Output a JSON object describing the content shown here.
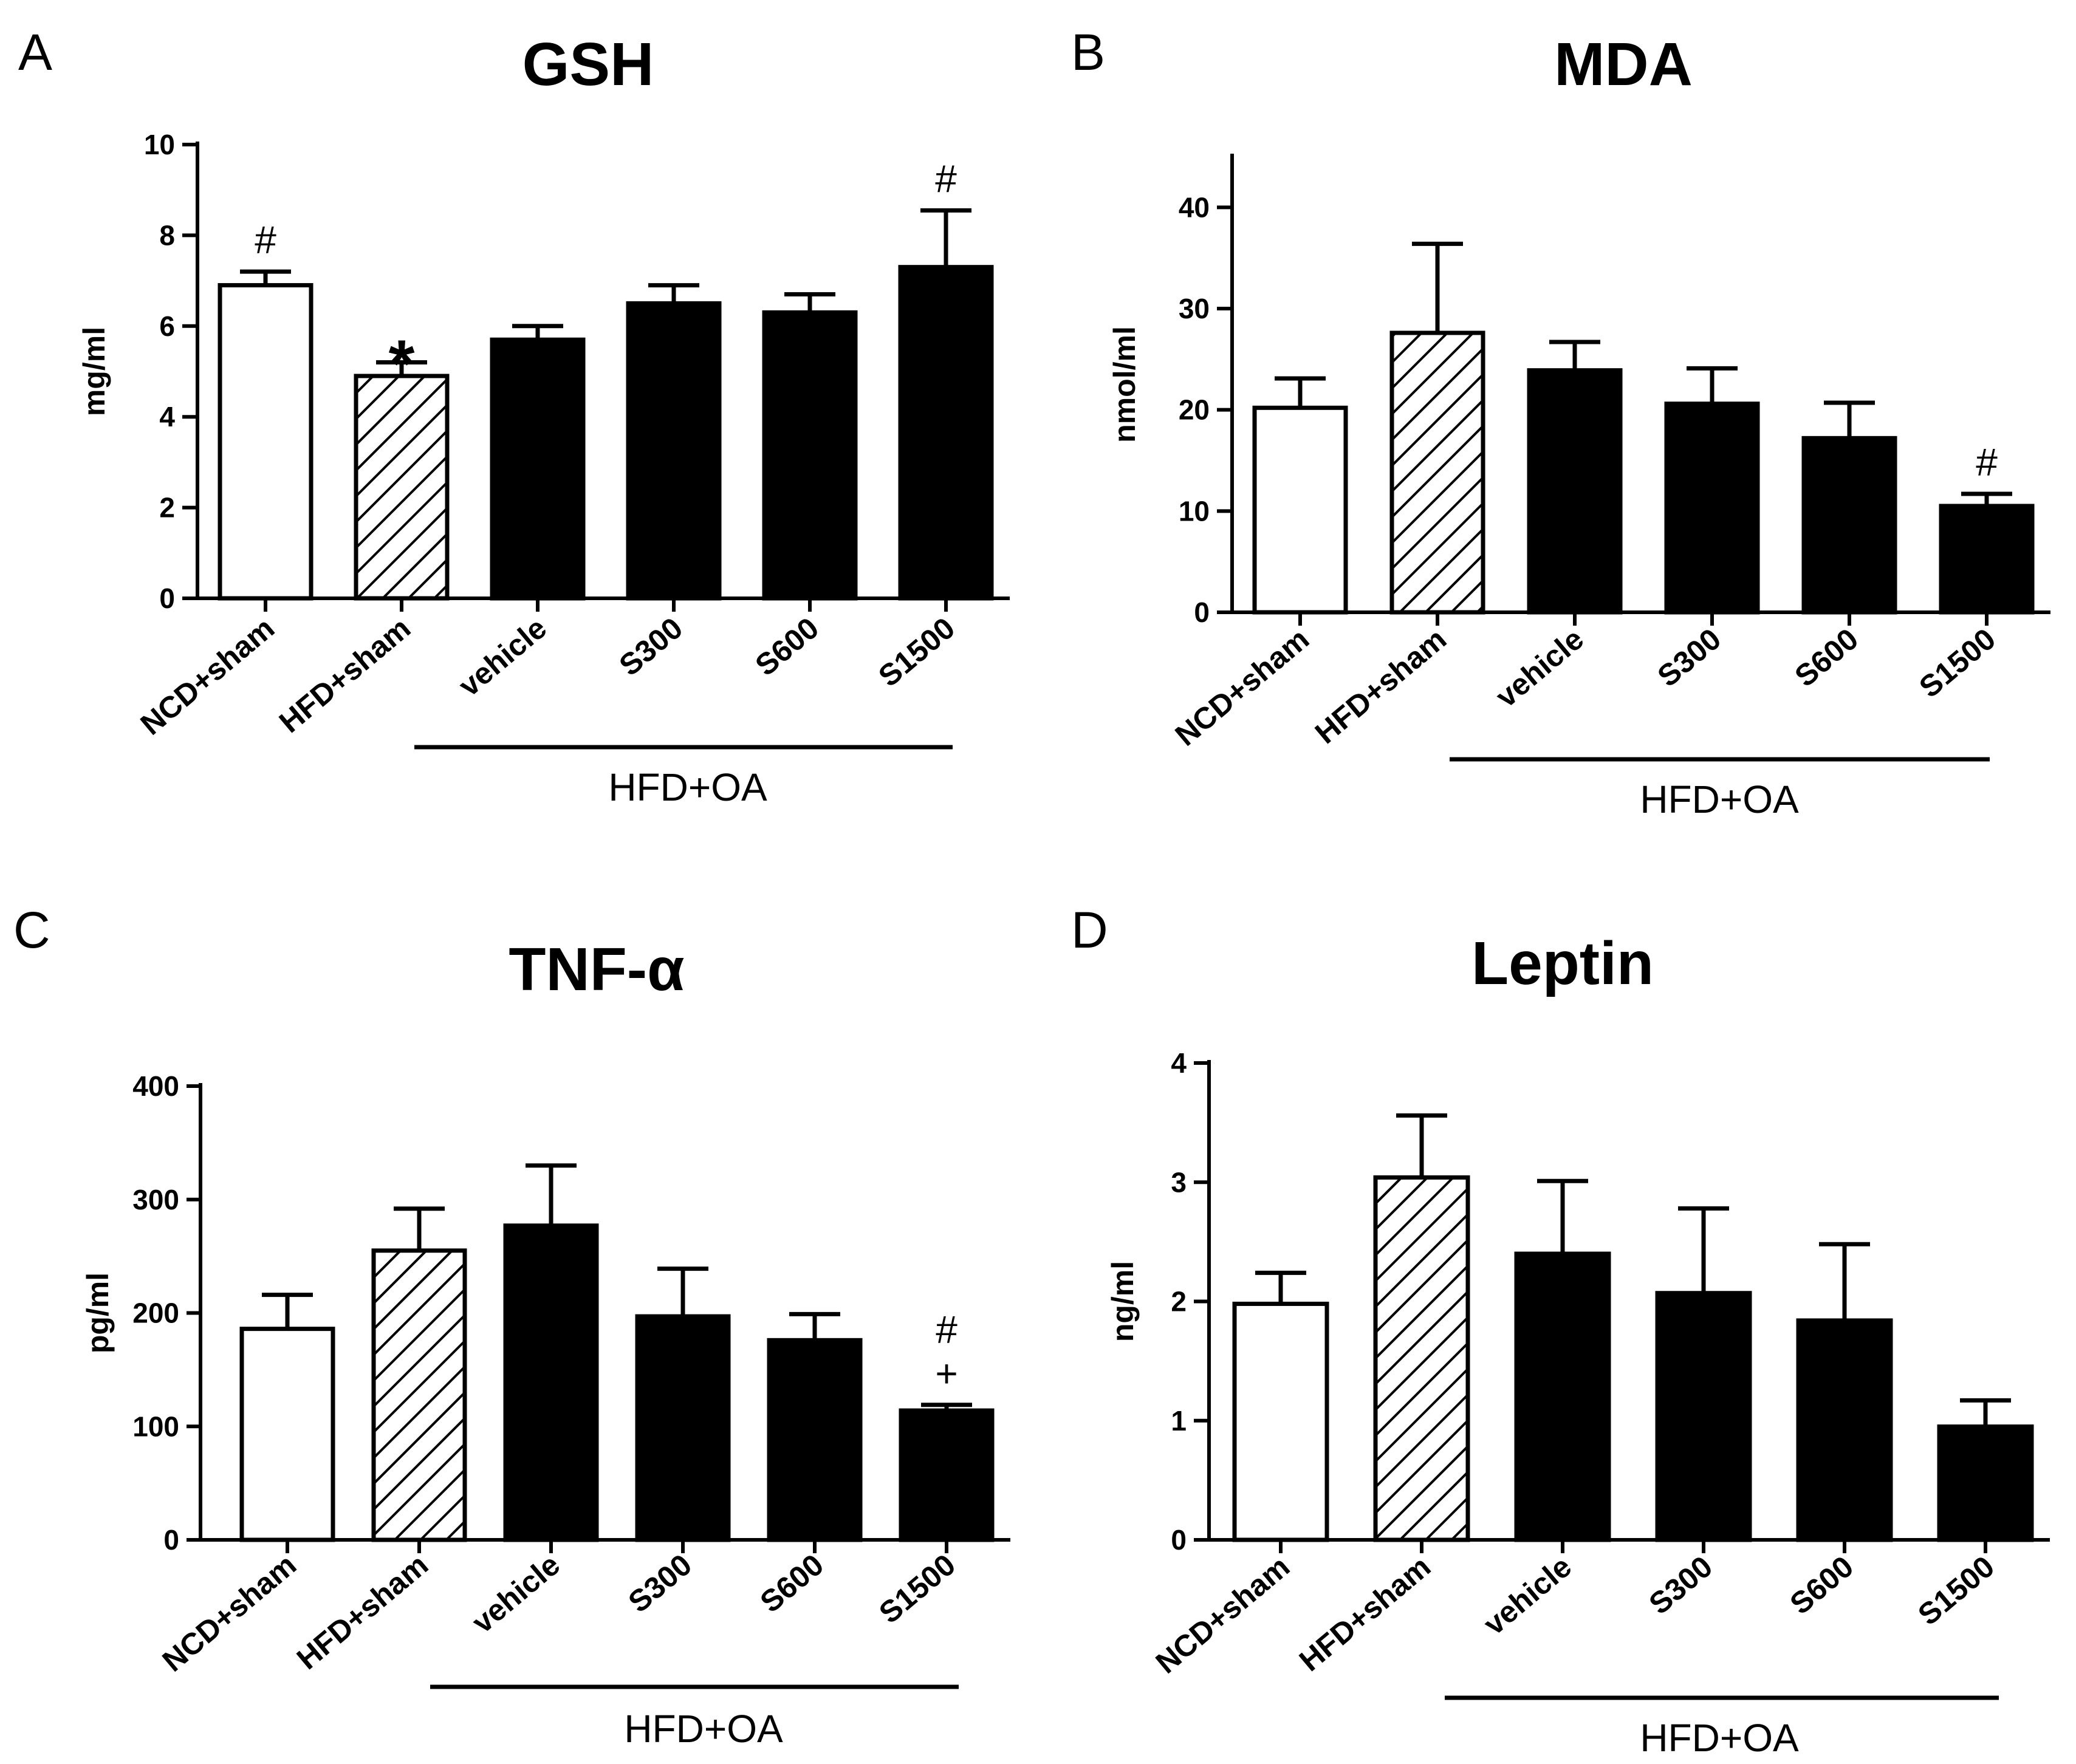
{
  "chart_data": [
    {
      "panel": "A",
      "type": "bar",
      "title": "GSH",
      "ylabel": "mg/ml",
      "ylim": [
        0,
        10
      ],
      "yticks": [
        0,
        2,
        4,
        6,
        8,
        10
      ],
      "categories": [
        "NCD+sham",
        "HFD+sham",
        "vehicle",
        "S300",
        "S600",
        "S1500"
      ],
      "values": [
        6.9,
        4.9,
        5.7,
        6.5,
        6.3,
        7.3
      ],
      "errors": [
        0.3,
        0.3,
        0.3,
        0.4,
        0.4,
        1.25
      ],
      "fills": [
        "white",
        "hatch",
        "black",
        "black",
        "black",
        "black"
      ],
      "annotations": [
        {
          "index": 0,
          "labels": [
            "#"
          ]
        },
        {
          "index": 1,
          "labels": [
            "*"
          ]
        },
        {
          "index": 5,
          "labels": [
            "#"
          ]
        }
      ],
      "group_label": "HFD+OA",
      "group_range": [
        2,
        5
      ]
    },
    {
      "panel": "B",
      "type": "bar",
      "title": "MDA",
      "ylabel": "nmol/ml",
      "ylim": [
        0,
        45
      ],
      "yticks": [
        0,
        10,
        20,
        30,
        40
      ],
      "categories": [
        "NCD+sham",
        "HFD+sham",
        "vehicle",
        "S300",
        "S600",
        "S1500"
      ],
      "values": [
        20.2,
        27.6,
        23.9,
        20.6,
        17.2,
        10.5
      ],
      "errors": [
        2.9,
        8.8,
        2.8,
        3.5,
        3.5,
        1.2
      ],
      "fills": [
        "white",
        "hatch",
        "black",
        "black",
        "black",
        "black"
      ],
      "annotations": [
        {
          "index": 5,
          "labels": [
            "#"
          ]
        }
      ],
      "group_label": "HFD+OA",
      "group_range": [
        2,
        5
      ]
    },
    {
      "panel": "C",
      "type": "bar",
      "title": "TNF-α",
      "ylabel": "pg/ml",
      "ylim": [
        0,
        400
      ],
      "yticks": [
        0,
        100,
        200,
        300,
        400
      ],
      "categories": [
        "NCD+sham",
        "HFD+sham",
        "vehicle",
        "S300",
        "S600",
        "S1500"
      ],
      "values": [
        186,
        255,
        277,
        197,
        176,
        114
      ],
      "errors": [
        30,
        37,
        53,
        42,
        23,
        5
      ],
      "fills": [
        "white",
        "hatch",
        "black",
        "black",
        "black",
        "black"
      ],
      "annotations": [
        {
          "index": 5,
          "labels": [
            "#",
            "+"
          ]
        }
      ],
      "group_label": "HFD+OA",
      "group_range": [
        2,
        5
      ]
    },
    {
      "panel": "D",
      "type": "bar",
      "title": "Leptin",
      "ylabel": "ng/ml",
      "ylim": [
        0,
        4
      ],
      "yticks": [
        0,
        1,
        2,
        3,
        4
      ],
      "categories": [
        "NCD+sham",
        "HFD+sham",
        "vehicle",
        "S300",
        "S600",
        "S1500"
      ],
      "values": [
        1.98,
        3.04,
        2.4,
        2.07,
        1.84,
        0.95
      ],
      "errors": [
        0.26,
        0.52,
        0.61,
        0.71,
        0.64,
        0.22
      ],
      "fills": [
        "white",
        "hatch",
        "black",
        "black",
        "black",
        "black"
      ],
      "annotations": [],
      "group_label": "HFD+OA",
      "group_range": [
        2,
        5
      ]
    }
  ]
}
